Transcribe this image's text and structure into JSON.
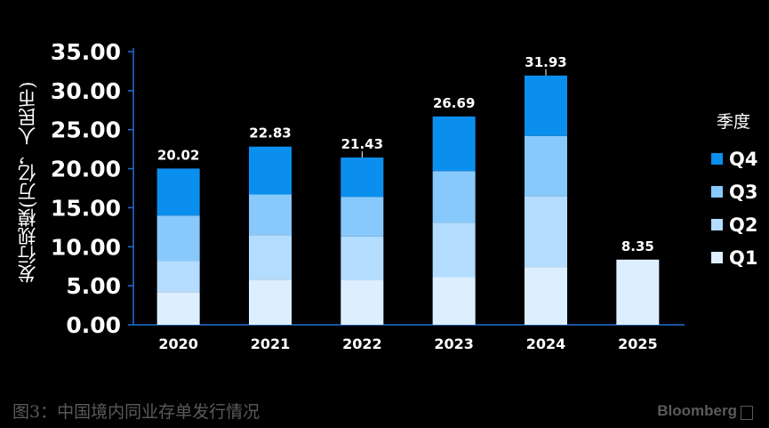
{
  "chart_data": {
    "type": "bar",
    "stacked": true,
    "ylabel": "发行规模(万亿，人民币)",
    "ylim": [
      0,
      35
    ],
    "yticks": [
      "0.00",
      "5.00",
      "10.00",
      "15.00",
      "20.00",
      "25.00",
      "30.00",
      "35.00"
    ],
    "categories": [
      "2020",
      "2021",
      "2022",
      "2023",
      "2024",
      "2025"
    ],
    "totals_labels": [
      "20.02",
      "22.83",
      "21.43",
      "26.69",
      "31.93",
      "8.35"
    ],
    "series": [
      {
        "name": "Q1",
        "color": "#ddefff",
        "values": [
          4.2,
          5.8,
          5.7,
          6.1,
          7.4,
          8.35
        ]
      },
      {
        "name": "Q2",
        "color": "#b3dcff",
        "values": [
          4.0,
          5.7,
          5.6,
          7.0,
          9.1,
          0
        ]
      },
      {
        "name": "Q3",
        "color": "#87c9fb",
        "values": [
          5.8,
          5.2,
          5.1,
          6.6,
          7.7,
          0
        ]
      },
      {
        "name": "Q4",
        "color": "#0a8fee",
        "values": [
          6.02,
          6.13,
          5.03,
          6.99,
          7.73,
          0
        ]
      }
    ],
    "legend": {
      "title": "季度",
      "placement": "right"
    }
  },
  "caption": "图3：中国境内同业存单发行情况",
  "brand": "Bloomberg"
}
